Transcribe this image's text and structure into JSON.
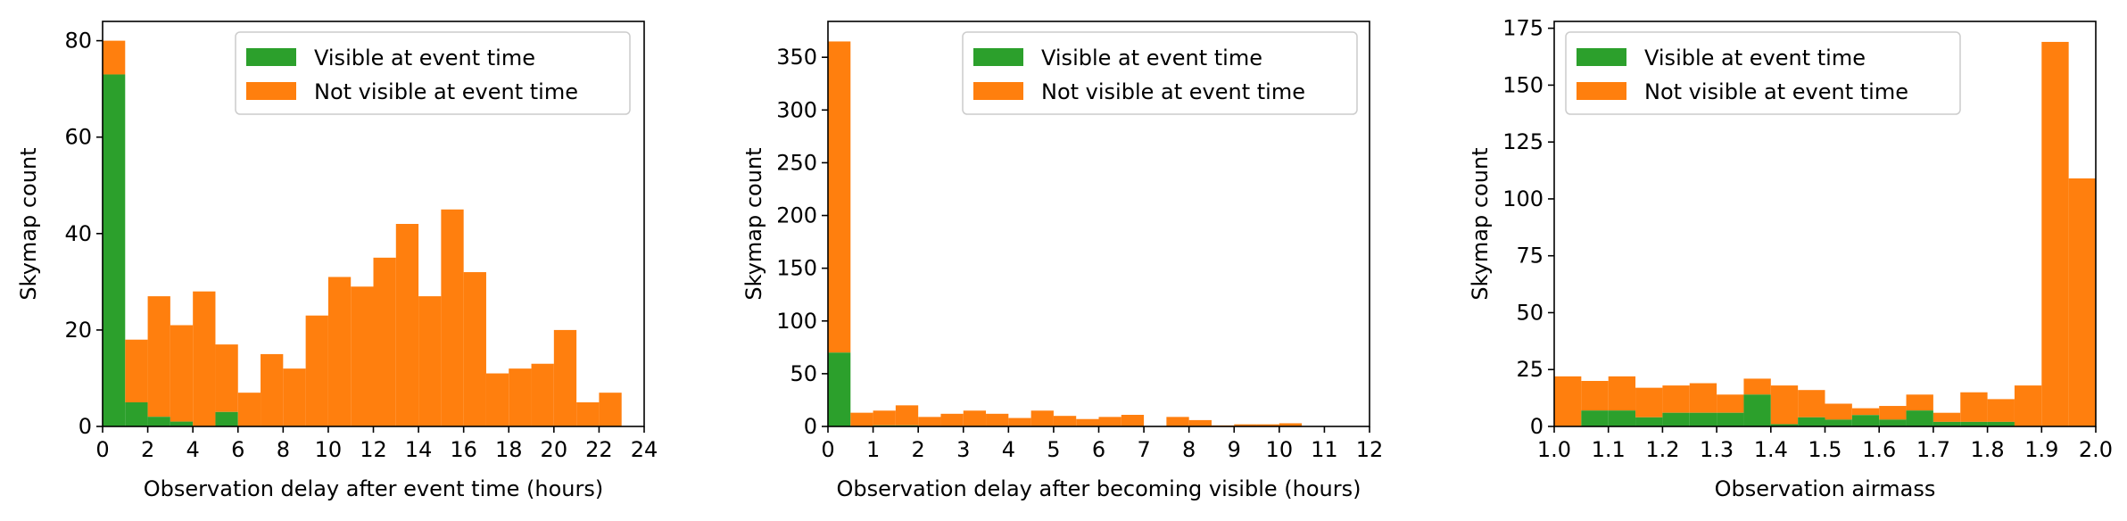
{
  "colors": {
    "visible": "#2ca02c",
    "not_visible": "#ff7f0e",
    "axis": "#000000",
    "legend_border": "#cccccc"
  },
  "chart_data": [
    {
      "type": "bar",
      "stacked": true,
      "title": "",
      "xlabel": "Observation delay after event time (hours)",
      "ylabel": "Skymap count",
      "xlim": [
        0,
        24
      ],
      "ylim": [
        0,
        84
      ],
      "bin_width": 1,
      "x_ticks": [
        "0",
        "2",
        "4",
        "6",
        "8",
        "10",
        "12",
        "14",
        "16",
        "18",
        "20",
        "22",
        "24"
      ],
      "y_ticks": [
        "0",
        "20",
        "40",
        "60",
        "80"
      ],
      "legend": {
        "position": "top-right",
        "entries": [
          "Visible at event time",
          "Not visible at event time"
        ]
      },
      "bin_starts": [
        0,
        1,
        2,
        3,
        4,
        5,
        6,
        7,
        8,
        9,
        10,
        11,
        12,
        13,
        14,
        15,
        16,
        17,
        18,
        19,
        20,
        21,
        22
      ],
      "series": [
        {
          "name": "Visible at event time",
          "values": [
            73,
            5,
            2,
            1,
            0,
            3,
            0,
            0,
            0,
            0,
            0,
            0,
            0,
            0,
            0,
            0,
            0,
            0,
            0,
            0,
            0,
            0,
            0
          ]
        },
        {
          "name": "Not visible at event time",
          "values": [
            7,
            13,
            25,
            20,
            28,
            14,
            7,
            15,
            12,
            23,
            31,
            29,
            35,
            42,
            27,
            45,
            32,
            11,
            12,
            13,
            20,
            5,
            7
          ]
        }
      ]
    },
    {
      "type": "bar",
      "stacked": true,
      "title": "",
      "xlabel": "Observation delay after becoming visible (hours)",
      "ylabel": "Skymap count",
      "xlim": [
        0,
        12
      ],
      "ylim": [
        0,
        384
      ],
      "bin_width": 0.5,
      "x_ticks": [
        "0",
        "1",
        "2",
        "3",
        "4",
        "5",
        "6",
        "7",
        "8",
        "9",
        "10",
        "11",
        "12"
      ],
      "y_ticks": [
        "0",
        "50",
        "100",
        "150",
        "200",
        "250",
        "300",
        "350"
      ],
      "legend": {
        "position": "top-right",
        "entries": [
          "Visible at event time",
          "Not visible at event time"
        ]
      },
      "bin_starts": [
        0,
        0.5,
        1,
        1.5,
        2,
        2.5,
        3,
        3.5,
        4,
        4.5,
        5,
        5.5,
        6,
        6.5,
        7,
        7.5,
        8,
        8.5,
        9,
        9.5,
        10,
        10.5,
        11,
        11.5
      ],
      "series": [
        {
          "name": "Visible at event time",
          "values": [
            70,
            0,
            1,
            1,
            0,
            0,
            0,
            0,
            0,
            0,
            0,
            0,
            0,
            0,
            0,
            0,
            0,
            0,
            0,
            0,
            0,
            0,
            0,
            0
          ]
        },
        {
          "name": "Not visible at event time",
          "values": [
            295,
            13,
            14,
            19,
            9,
            12,
            15,
            12,
            8,
            15,
            10,
            7,
            9,
            11,
            0,
            9,
            6,
            1,
            2,
            2,
            3,
            0,
            0,
            0
          ]
        }
      ]
    },
    {
      "type": "bar",
      "stacked": true,
      "title": "",
      "xlabel": "Observation airmass",
      "ylabel": "Skymap count",
      "xlim": [
        1.0,
        2.0
      ],
      "ylim": [
        0,
        178
      ],
      "bin_width": 0.05,
      "x_ticks": [
        "1.0",
        "1.1",
        "1.2",
        "1.3",
        "1.4",
        "1.5",
        "1.6",
        "1.7",
        "1.8",
        "1.9",
        "2.0"
      ],
      "y_ticks": [
        "0",
        "25",
        "50",
        "75",
        "100",
        "125",
        "150",
        "175"
      ],
      "legend": {
        "position": "top-left",
        "entries": [
          "Visible at event time",
          "Not visible at event time"
        ]
      },
      "bin_starts": [
        1.0,
        1.05,
        1.1,
        1.15,
        1.2,
        1.25,
        1.3,
        1.35,
        1.4,
        1.45,
        1.5,
        1.55,
        1.6,
        1.65,
        1.7,
        1.75,
        1.8,
        1.85,
        1.9,
        1.95
      ],
      "series": [
        {
          "name": "Visible at event time",
          "values": [
            0,
            7,
            7,
            4,
            6,
            6,
            6,
            14,
            1,
            4,
            3,
            5,
            3,
            7,
            2,
            2,
            2,
            0,
            0,
            0
          ]
        },
        {
          "name": "Not visible at event time",
          "values": [
            22,
            13,
            15,
            13,
            12,
            13,
            8,
            7,
            17,
            12,
            7,
            3,
            6,
            7,
            4,
            13,
            10,
            18,
            169,
            109
          ]
        }
      ]
    }
  ]
}
